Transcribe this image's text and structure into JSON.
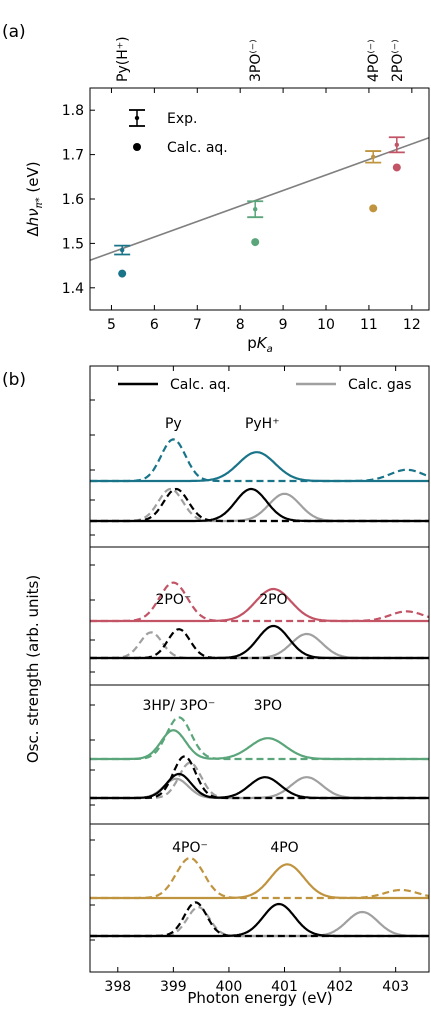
{
  "chart_data": [
    {
      "type": "scatter",
      "panel_label": "(a)",
      "xlabel": "pK_a",
      "ylabel": "Δhν_π* (eV)",
      "xlim": [
        4.5,
        12.4
      ],
      "ylim": [
        1.35,
        1.85
      ],
      "xticks": [
        5,
        6,
        7,
        8,
        9,
        10,
        11,
        12
      ],
      "yticks": [
        1.4,
        1.5,
        1.6,
        1.7,
        1.8
      ],
      "top_labels": [
        {
          "text": "Py(H⁺)",
          "x": 5.25
        },
        {
          "text": "3PO⁽⁻⁾",
          "x": 8.35
        },
        {
          "text": "4PO⁽⁻⁾",
          "x": 11.1
        },
        {
          "text": "2PO⁽⁻⁾",
          "x": 11.65
        }
      ],
      "legend": {
        "placement": "top-left",
        "entries": [
          "Exp.",
          "Calc. aq."
        ]
      },
      "series": [
        {
          "name": "Exp.",
          "points": [
            {
              "x": 5.25,
              "y": 1.485,
              "err": 0.01,
              "color": "#1a7489"
            },
            {
              "x": 8.35,
              "y": 1.577,
              "err": 0.018,
              "color": "#5aa67a"
            },
            {
              "x": 11.1,
              "y": 1.695,
              "err": 0.013,
              "color": "#c0943f"
            },
            {
              "x": 11.65,
              "y": 1.722,
              "err": 0.017,
              "color": "#c25466"
            }
          ]
        },
        {
          "name": "Calc. aq.",
          "points": [
            {
              "x": 5.25,
              "y": 1.432,
              "color": "#1a7489"
            },
            {
              "x": 8.35,
              "y": 1.503,
              "color": "#5aa67a"
            },
            {
              "x": 11.1,
              "y": 1.579,
              "color": "#c0943f"
            },
            {
              "x": 11.65,
              "y": 1.671,
              "color": "#c25466"
            }
          ]
        }
      ],
      "fit_line": {
        "x": [
          4.5,
          12.4
        ],
        "y": [
          1.462,
          1.738
        ],
        "color": "#808080"
      }
    },
    {
      "type": "line",
      "panel_label": "(b)",
      "xlabel": "Photon energy (eV)",
      "ylabel": "Osc. strength (arb. units)",
      "xlim": [
        397.5,
        403.6
      ],
      "xticks": [
        398,
        399,
        400,
        401,
        402,
        403
      ],
      "legend": {
        "placement": "top",
        "entries": [
          {
            "text": "Calc. aq.",
            "color": "#000000"
          },
          {
            "text": "Calc. gas",
            "color": "#a0a0a0"
          }
        ]
      },
      "groups": [
        {
          "color": "#1a7489",
          "labels": [
            {
              "text": "Py",
              "x": 399.0
            },
            {
              "text": "PyH⁺",
              "x": 400.6
            }
          ],
          "exp_solid_peaks": [
            {
              "center": 400.5,
              "height": 0.9,
              "sigma": 0.33
            }
          ],
          "exp_dashed_peaks": [
            {
              "center": 399.0,
              "height": 1.3,
              "sigma": 0.22
            },
            {
              "center": 403.2,
              "height": 0.35,
              "sigma": 0.3
            }
          ],
          "calc_solid": {
            "aq": [
              {
                "center": 400.4,
                "height": 1.0,
                "sigma": 0.28
              }
            ],
            "gas": [
              {
                "center": 401.0,
                "height": 0.85,
                "sigma": 0.28
              }
            ]
          },
          "calc_dashed": {
            "aq": [
              {
                "center": 399.05,
                "height": 1.0,
                "sigma": 0.22
              }
            ],
            "gas": [
              {
                "center": 398.95,
                "height": 1.0,
                "sigma": 0.22
              }
            ]
          }
        },
        {
          "color": "#c25466",
          "labels": [
            {
              "text": "2PO⁻",
              "x": 399.0
            },
            {
              "text": "2PO",
              "x": 400.8
            }
          ],
          "exp_solid_peaks": [
            {
              "center": 400.8,
              "height": 1.0,
              "sigma": 0.32
            }
          ],
          "exp_dashed_peaks": [
            {
              "center": 399.0,
              "height": 1.2,
              "sigma": 0.25
            },
            {
              "center": 403.2,
              "height": 0.3,
              "sigma": 0.3
            }
          ],
          "calc_solid": {
            "aq": [
              {
                "center": 400.8,
                "height": 1.0,
                "sigma": 0.28
              }
            ],
            "gas": [
              {
                "center": 401.4,
                "height": 0.75,
                "sigma": 0.28
              }
            ]
          },
          "calc_dashed": {
            "aq": [
              {
                "center": 399.1,
                "height": 0.9,
                "sigma": 0.2
              }
            ],
            "gas": [
              {
                "center": 398.6,
                "height": 0.8,
                "sigma": 0.2
              }
            ]
          }
        },
        {
          "color": "#5aa67a",
          "labels": [
            {
              "text": "3HP/ 3PO⁻",
              "x": 399.1
            },
            {
              "text": "3PO",
              "x": 400.7
            }
          ],
          "exp_solid_peaks": [
            {
              "center": 399.0,
              "height": 0.9,
              "sigma": 0.22
            },
            {
              "center": 400.7,
              "height": 0.65,
              "sigma": 0.32
            }
          ],
          "exp_dashed_peaks": [
            {
              "center": 399.1,
              "height": 1.3,
              "sigma": 0.22
            }
          ],
          "calc_solid": {
            "aq": [
              {
                "center": 399.1,
                "height": 0.75,
                "sigma": 0.22
              },
              {
                "center": 400.65,
                "height": 0.65,
                "sigma": 0.28
              }
            ],
            "gas": [
              {
                "center": 399.05,
                "height": 0.6,
                "sigma": 0.22
              },
              {
                "center": 401.4,
                "height": 0.65,
                "sigma": 0.28
              }
            ]
          },
          "calc_dashed": {
            "aq": [
              {
                "center": 399.2,
                "height": 1.3,
                "sigma": 0.2
              }
            ],
            "gas": [
              {
                "center": 399.3,
                "height": 1.1,
                "sigma": 0.2
              }
            ]
          }
        },
        {
          "color": "#c0943f",
          "labels": [
            {
              "text": "4PO⁻",
              "x": 399.3
            },
            {
              "text": "4PO",
              "x": 401.0
            }
          ],
          "exp_solid_peaks": [
            {
              "center": 401.05,
              "height": 1.05,
              "sigma": 0.3
            }
          ],
          "exp_dashed_peaks": [
            {
              "center": 399.3,
              "height": 1.25,
              "sigma": 0.25
            },
            {
              "center": 403.1,
              "height": 0.25,
              "sigma": 0.3
            }
          ],
          "calc_solid": {
            "aq": [
              {
                "center": 400.9,
                "height": 1.0,
                "sigma": 0.28
              }
            ],
            "gas": [
              {
                "center": 402.4,
                "height": 0.75,
                "sigma": 0.28
              }
            ]
          },
          "calc_dashed": {
            "aq": [
              {
                "center": 399.4,
                "height": 1.05,
                "sigma": 0.2
              }
            ],
            "gas": [
              {
                "center": 399.45,
                "height": 0.9,
                "sigma": 0.2
              }
            ]
          }
        }
      ]
    }
  ]
}
